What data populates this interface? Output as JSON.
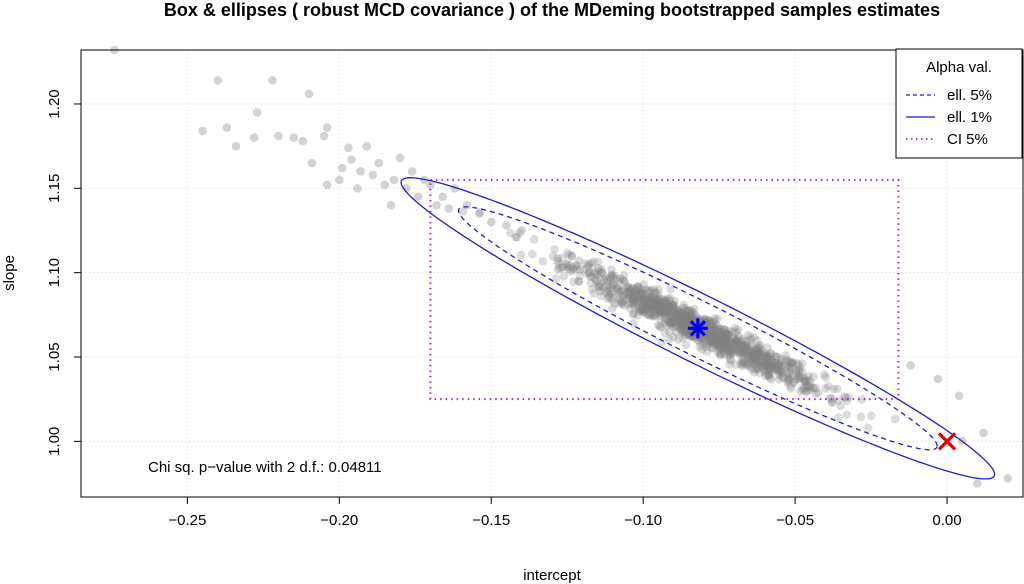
{
  "chart_data": {
    "type": "scatter",
    "title": "Box & ellipses ( robust MCD covariance ) of the MDeming bootstrapped samples estimates",
    "xlabel": "intercept",
    "ylabel": "slope",
    "xlim": [
      -0.285,
      0.025
    ],
    "ylim": [
      0.967,
      1.232
    ],
    "x_ticks": [
      -0.25,
      -0.2,
      -0.15,
      -0.1,
      -0.05,
      0.0
    ],
    "x_tick_labels": [
      "−0.25",
      "−0.20",
      "−0.15",
      "−0.10",
      "−0.05",
      "0.00"
    ],
    "y_ticks": [
      1.0,
      1.05,
      1.1,
      1.15,
      1.2
    ],
    "y_tick_labels": [
      "1.00",
      "1.05",
      "1.10",
      "1.15",
      "1.20"
    ],
    "grid": true,
    "series": [
      {
        "type": "scatter",
        "color": "#808080",
        "points": [
          [
            -0.274,
            1.232
          ],
          [
            -0.245,
            1.184
          ],
          [
            -0.24,
            1.214
          ],
          [
            -0.237,
            1.186
          ],
          [
            -0.234,
            1.175
          ],
          [
            -0.228,
            1.18
          ],
          [
            -0.227,
            1.195
          ],
          [
            -0.222,
            1.214
          ],
          [
            -0.22,
            1.181
          ],
          [
            -0.215,
            1.18
          ],
          [
            -0.212,
            1.178
          ],
          [
            -0.21,
            1.206
          ],
          [
            -0.209,
            1.165
          ],
          [
            -0.205,
            1.181
          ],
          [
            -0.204,
            1.186
          ],
          [
            -0.204,
            1.152
          ],
          [
            -0.2,
            1.155
          ],
          [
            -0.199,
            1.162
          ],
          [
            -0.197,
            1.174
          ],
          [
            -0.196,
            1.167
          ],
          [
            -0.194,
            1.15
          ],
          [
            -0.193,
            1.16
          ],
          [
            -0.191,
            1.175
          ],
          [
            -0.189,
            1.158
          ],
          [
            -0.187,
            1.165
          ],
          [
            -0.185,
            1.152
          ],
          [
            -0.183,
            1.14
          ],
          [
            -0.182,
            1.155
          ],
          [
            -0.18,
            1.168
          ],
          [
            -0.178,
            1.15
          ],
          [
            -0.176,
            1.16
          ],
          [
            -0.174,
            1.145
          ],
          [
            -0.172,
            1.155
          ],
          [
            -0.17,
            1.152
          ],
          [
            -0.168,
            1.14
          ],
          [
            -0.166,
            1.145
          ],
          [
            -0.164,
            1.138
          ],
          [
            -0.162,
            1.15
          ],
          [
            -0.158,
            1.14
          ],
          [
            -0.154,
            1.135
          ],
          [
            -0.15,
            1.13
          ],
          [
            -0.145,
            1.128
          ],
          [
            -0.14,
            1.125
          ],
          [
            0.005,
            1.0
          ],
          [
            0.01,
            0.975
          ],
          [
            0.012,
            1.005
          ],
          [
            0.02,
            0.978
          ],
          [
            0.004,
            1.027
          ],
          [
            -0.003,
            1.037
          ],
          [
            -0.012,
            1.045
          ]
        ],
        "cloud_center": [
          -0.082,
          1.067
        ],
        "cloud_count": 1100
      },
      {
        "name": "ell. 5%",
        "type": "ellipse",
        "color": "#1f1fc8",
        "line_style": "dashed",
        "center": [
          -0.082,
          1.067
        ],
        "covariance": [
          [
            0.0014,
            -0.00124
          ],
          [
            -0.00124,
            0.00117
          ]
        ],
        "level": 0.95
      },
      {
        "name": "ell. 1%",
        "type": "ellipse",
        "color": "#1f1fc8",
        "line_style": "solid",
        "center": [
          -0.082,
          1.067
        ],
        "covariance": [
          [
            0.0014,
            -0.00124
          ],
          [
            -0.00124,
            0.00117
          ]
        ],
        "level": 0.99
      },
      {
        "name": "CI 5%",
        "type": "rect",
        "color": "#a020f0",
        "line_style": "dotted",
        "x_range": [
          -0.17,
          -0.016
        ],
        "y_range": [
          1.025,
          1.155
        ]
      }
    ],
    "markers": [
      {
        "name": "estimate",
        "x": -0.082,
        "y": 1.067,
        "shape": "asterisk",
        "color": "#0000ff"
      },
      {
        "name": "reference",
        "x": 0.0,
        "y": 1.0,
        "shape": "cross",
        "color": "#e00000"
      }
    ],
    "legend": {
      "title": "Alpha val.",
      "placement": "top-right",
      "entries": [
        {
          "label": "ell. 5%",
          "color": "#1f1fc8",
          "style": "dashed"
        },
        {
          "label": "ell. 1%",
          "color": "#1f1fc8",
          "style": "solid"
        },
        {
          "label": "CI 5%",
          "color": "#a020f0",
          "style": "dotted"
        }
      ]
    },
    "annotation": "Chi sq. p−value with 2 d.f.:  0.04811"
  }
}
